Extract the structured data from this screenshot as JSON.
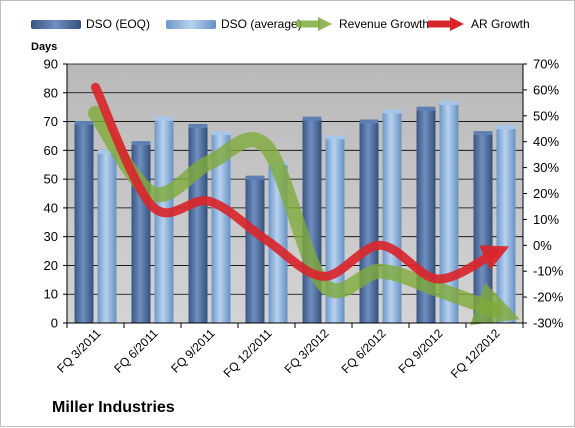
{
  "company_name": "Miller Industries",
  "colors": {
    "dso_eoq": "#4f6fa3",
    "dso_avg": "#8fb3dc",
    "revenue_growth": "#7faa3a",
    "ar_growth": "#d9262b",
    "plot_bg": "#c0c0c0"
  },
  "chart_data": {
    "type": "bar",
    "categories": [
      "FQ 3/2011",
      "FQ 6/2011",
      "FQ 9/2011",
      "FQ 12/2011",
      "FQ 3/2012",
      "FQ 6/2012",
      "FQ 9/2012",
      "FQ 12/2012"
    ],
    "series": [
      {
        "name": "DSO (EOQ)",
        "type": "bar",
        "axis": "left",
        "values": [
          69.5,
          62.5,
          68.5,
          50.5,
          71,
          70,
          74.5,
          66
        ]
      },
      {
        "name": "DSO (average)",
        "type": "bar",
        "axis": "left",
        "values": [
          59.5,
          71,
          66,
          55.5,
          64.5,
          73.5,
          76.5,
          68
        ]
      },
      {
        "name": "Revenue Growth",
        "type": "line",
        "axis": "right",
        "values": [
          0.51,
          0.2,
          0.32,
          0.38,
          -0.15,
          -0.1,
          -0.17,
          -0.25
        ]
      },
      {
        "name": "AR Growth",
        "type": "line",
        "axis": "right",
        "values": [
          0.61,
          0.15,
          0.17,
          0.02,
          -0.12,
          0.0,
          -0.13,
          -0.03
        ]
      }
    ],
    "ylabel": "Days",
    "ylim": [
      0,
      90
    ],
    "yticks": [
      "0",
      "10",
      "20",
      "30",
      "40",
      "50",
      "60",
      "70",
      "80",
      "90"
    ],
    "y2lim": [
      -0.3,
      0.7
    ],
    "y2ticks": [
      "-30%",
      "-20%",
      "-10%",
      "0%",
      "10%",
      "20%",
      "30%",
      "40%",
      "50%",
      "60%",
      "70%"
    ],
    "grid": true,
    "legend_position": "top"
  }
}
